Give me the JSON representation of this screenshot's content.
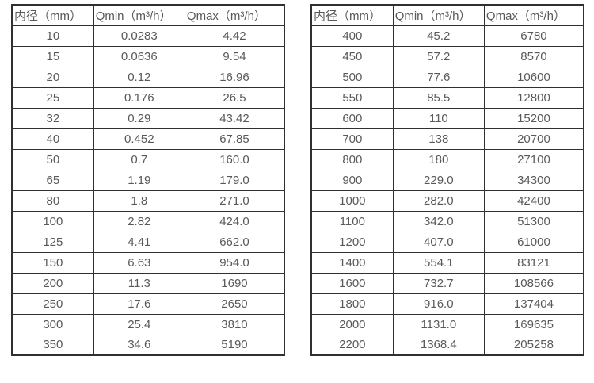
{
  "colors": {
    "background": "#ffffff",
    "border": "#303030",
    "text": "#595959"
  },
  "tables": [
    {
      "name": "flow-spec-table-small-diameters",
      "headers": [
        "内径（mm）",
        "Qmin（m³/h）",
        "Qmax（m³/h）"
      ],
      "rows": [
        [
          "10",
          "0.0283",
          "4.42"
        ],
        [
          "15",
          "0.0636",
          "9.54"
        ],
        [
          "20",
          "0.12",
          "16.96"
        ],
        [
          "25",
          "0.176",
          "26.5"
        ],
        [
          "32",
          "0.29",
          "43.42"
        ],
        [
          "40",
          "0.452",
          "67.85"
        ],
        [
          "50",
          "0.7",
          "160.0"
        ],
        [
          "65",
          "1.19",
          "179.0"
        ],
        [
          "80",
          "1.8",
          "271.0"
        ],
        [
          "100",
          "2.82",
          "424.0"
        ],
        [
          "125",
          "4.41",
          "662.0"
        ],
        [
          "150",
          "6.63",
          "954.0"
        ],
        [
          "200",
          "11.3",
          "1690"
        ],
        [
          "250",
          "17.6",
          "2650"
        ],
        [
          "300",
          "25.4",
          "3810"
        ],
        [
          "350",
          "34.6",
          "5190"
        ]
      ]
    },
    {
      "name": "flow-spec-table-large-diameters",
      "headers": [
        "内径（mm）",
        "Qmin（m³/h）",
        "Qmax（m³/h）"
      ],
      "rows": [
        [
          "400",
          "45.2",
          "6780"
        ],
        [
          "450",
          "57.2",
          "8570"
        ],
        [
          "500",
          "77.6",
          "10600"
        ],
        [
          "550",
          "85.5",
          "12800"
        ],
        [
          "600",
          "110",
          "15200"
        ],
        [
          "700",
          "138",
          "20700"
        ],
        [
          "800",
          "180",
          "27100"
        ],
        [
          "900",
          "229.0",
          "34300"
        ],
        [
          "1000",
          "282.0",
          "42400"
        ],
        [
          "1100",
          "342.0",
          "51300"
        ],
        [
          "1200",
          "407.0",
          "61000"
        ],
        [
          "1400",
          "554.1",
          "83121"
        ],
        [
          "1600",
          "732.7",
          "108566"
        ],
        [
          "1800",
          "916.0",
          "137404"
        ],
        [
          "2000",
          "1131.0",
          "169635"
        ],
        [
          "2200",
          "1368.4",
          "205258"
        ]
      ]
    }
  ]
}
